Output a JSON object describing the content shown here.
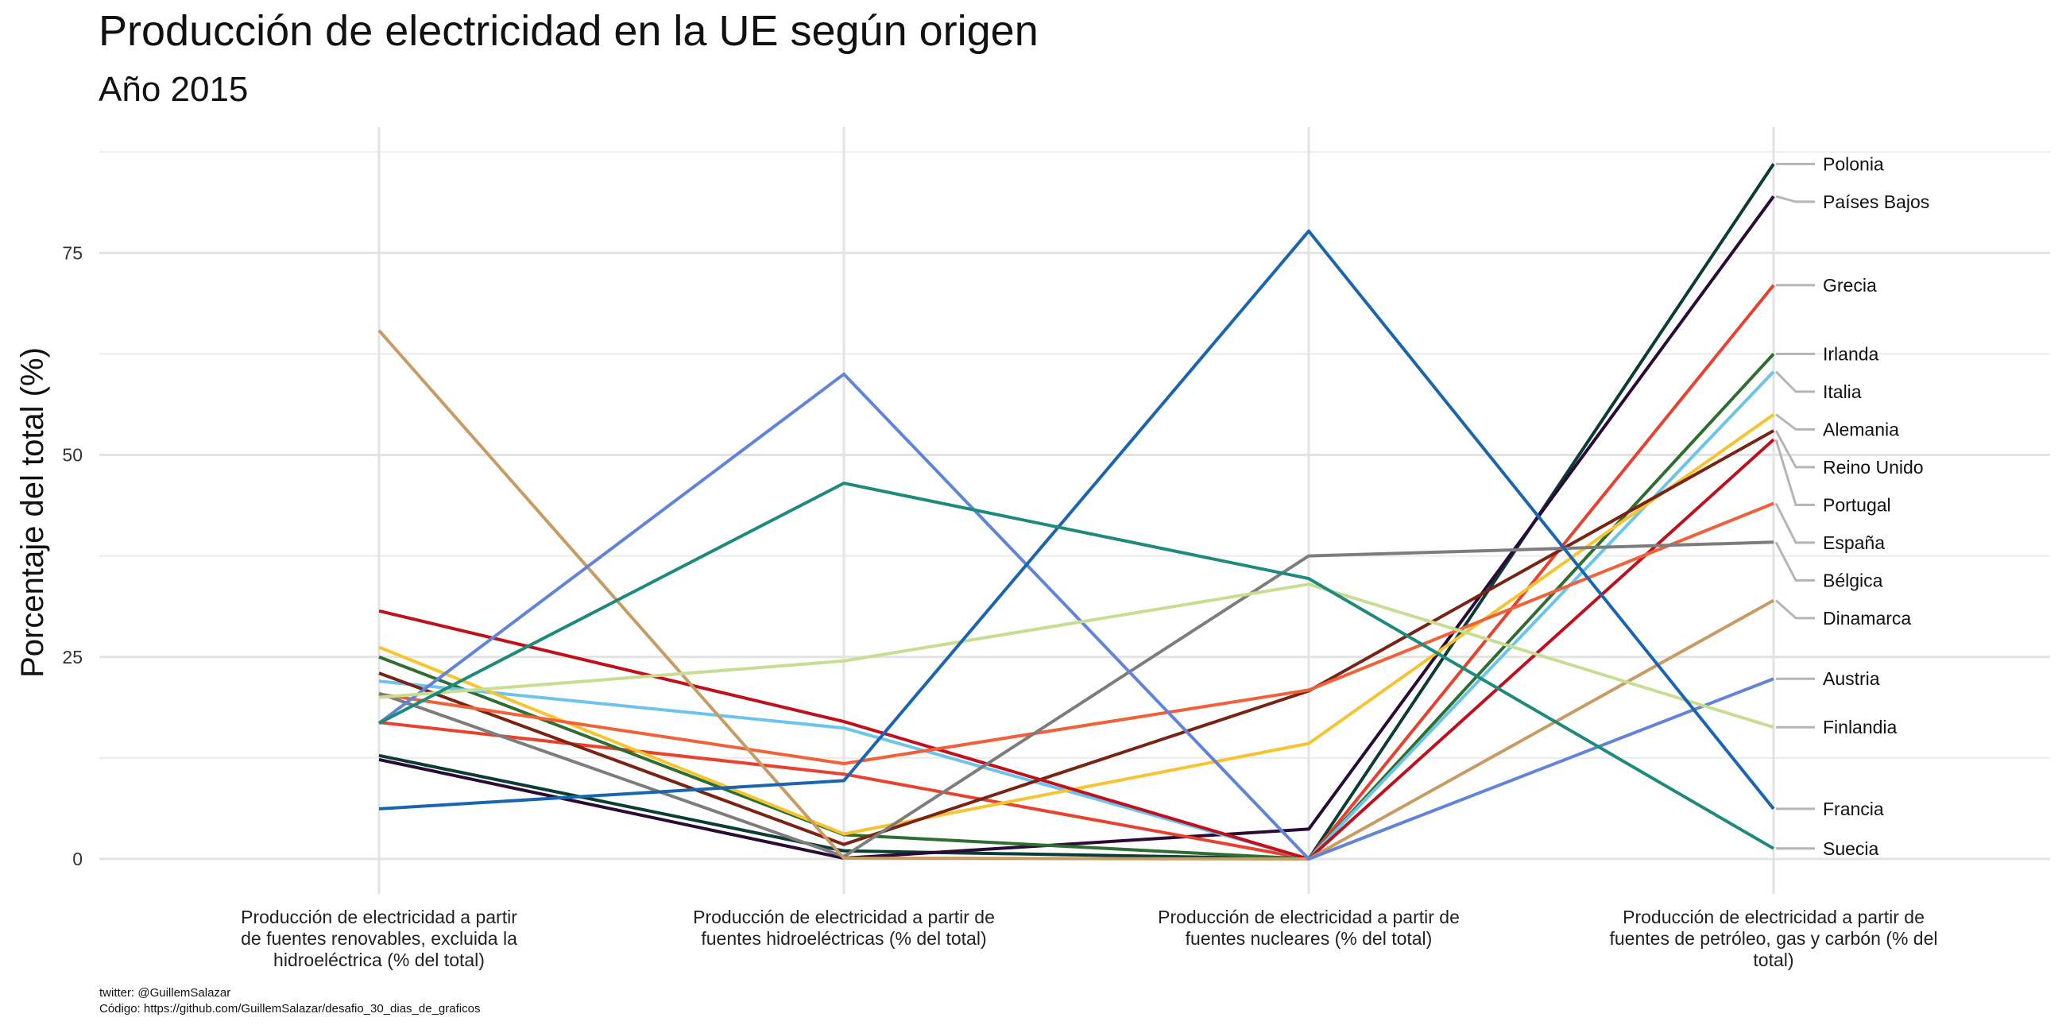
{
  "chart_data": {
    "type": "line",
    "title": "Producción de electricidad en la UE según origen",
    "subtitle": "Año 2015",
    "ylabel": "Porcentaje del total (%)",
    "xlabel": "",
    "ylim": [
      -4,
      88
    ],
    "yticks": [
      0,
      25,
      50,
      75
    ],
    "grid": true,
    "legend": "direct labels at right end of lines",
    "categories": [
      "Producción de electricidad a partir de fuentes renovables, excluida la hidroeléctrica (% del total)",
      "Producción de electricidad a partir de fuentes hidroeléctricas (% del total)",
      "Producción de electricidad a partir de fuentes nucleares (% del total)",
      "Producción de electricidad a partir de fuentes de petróleo, gas y carbón (% del total)"
    ],
    "category_lines": [
      [
        "Producción de electricidad a partir",
        "de fuentes renovables, excluida la",
        "hidroeléctrica (% del total)"
      ],
      [
        "Producción de electricidad a partir de",
        "fuentes hidroeléctricas (% del total)"
      ],
      [
        "Producción de electricidad a partir de",
        "fuentes nucleares (% del total)"
      ],
      [
        "Producción de electricidad a partir de",
        "fuentes de petróleo, gas y carbón (% del",
        "total)"
      ]
    ],
    "series": [
      {
        "name": "Polonia",
        "color": "#0b3d35",
        "values": [
          12.8,
          1.0,
          0,
          86.0
        ]
      },
      {
        "name": "Países Bajos",
        "color": "#2a0b36",
        "values": [
          12.3,
          0.1,
          3.7,
          82.0
        ]
      },
      {
        "name": "Grecia",
        "color": "#e8412f",
        "values": [
          16.9,
          10.5,
          0,
          71.0
        ]
      },
      {
        "name": "Irlanda",
        "color": "#2f6e32",
        "values": [
          25.0,
          3.0,
          0,
          62.5
        ]
      },
      {
        "name": "Italia",
        "color": "#6cc4ec",
        "values": [
          22.0,
          16.2,
          0,
          60.3
        ]
      },
      {
        "name": "Alemania",
        "color": "#f6c430",
        "values": [
          26.2,
          3.1,
          14.3,
          55.0
        ]
      },
      {
        "name": "Reino Unido",
        "color": "#7a2314",
        "values": [
          23.0,
          1.8,
          20.8,
          53.0
        ]
      },
      {
        "name": "Portugal",
        "color": "#c0101e",
        "values": [
          30.7,
          17.0,
          0,
          51.9
        ]
      },
      {
        "name": "España",
        "color": "#f0613a",
        "values": [
          20.4,
          11.8,
          20.9,
          44.0
        ]
      },
      {
        "name": "Bélgica",
        "color": "#7d7d7d",
        "values": [
          20.5,
          0.3,
          37.5,
          39.2
        ]
      },
      {
        "name": "Dinamarca",
        "color": "#c89b62",
        "values": [
          65.4,
          0.1,
          0,
          32.0
        ]
      },
      {
        "name": "Austria",
        "color": "#6184d8",
        "values": [
          16.8,
          60.0,
          0,
          22.3
        ]
      },
      {
        "name": "Finlandia",
        "color": "#c8dd92",
        "values": [
          20.0,
          24.5,
          34.0,
          16.3
        ]
      },
      {
        "name": "Francia",
        "color": "#1a65b0",
        "values": [
          6.2,
          9.7,
          77.7,
          6.2
        ]
      },
      {
        "name": "Suecia",
        "color": "#1d8a7b",
        "values": [
          16.8,
          46.5,
          34.7,
          1.3
        ]
      }
    ]
  },
  "caption_lines": [
    "twitter: @GuillemSalazar",
    "Código: https://github.com/GuillemSalazar/desafio_30_dias_de_graficos"
  ]
}
